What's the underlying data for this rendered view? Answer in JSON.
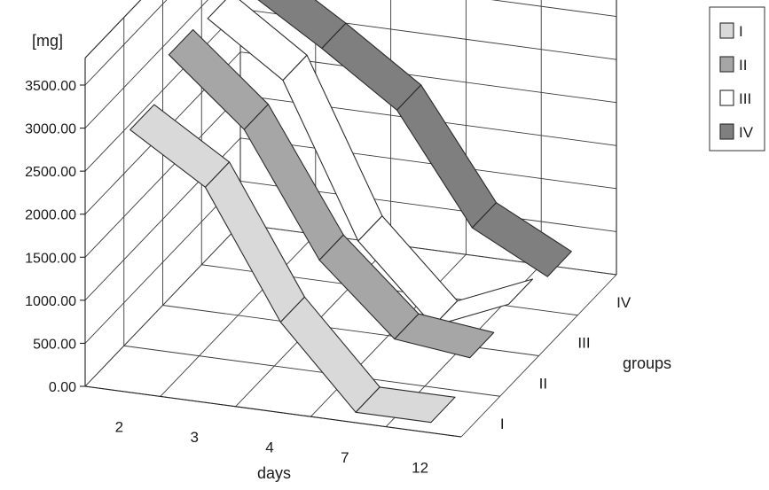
{
  "chart_data": {
    "type": "3d-ribbon",
    "title": "",
    "unit_label": "[mg]",
    "xlabel": "days",
    "zlabel": "groups",
    "categories": [
      "2",
      "3",
      "4",
      "7",
      "12"
    ],
    "groups": [
      "I",
      "II",
      "III",
      "IV"
    ],
    "y_ticks": [
      "0.00",
      "500.00",
      "1000.00",
      "1500.00",
      "2000.00",
      "2500.00",
      "3000.00",
      "3500.00"
    ],
    "ylim": [
      0,
      3500
    ],
    "grid": true,
    "legend_position": "top-right",
    "series": [
      {
        "name": "I",
        "color": "#d9d9d9",
        "values": [
          2950,
          2400,
          950,
          20,
          20
        ]
      },
      {
        "name": "II",
        "color": "#a6a6a6",
        "values": [
          3350,
          2600,
          1200,
          400,
          300
        ]
      },
      {
        "name": "III",
        "color": "#ffffff",
        "values": [
          3300,
          2700,
          950,
          80,
          450
        ]
      },
      {
        "name": "IV",
        "color": "#7f7f7f",
        "values": [
          3150,
          2600,
          2000,
          750,
          300
        ]
      }
    ]
  }
}
